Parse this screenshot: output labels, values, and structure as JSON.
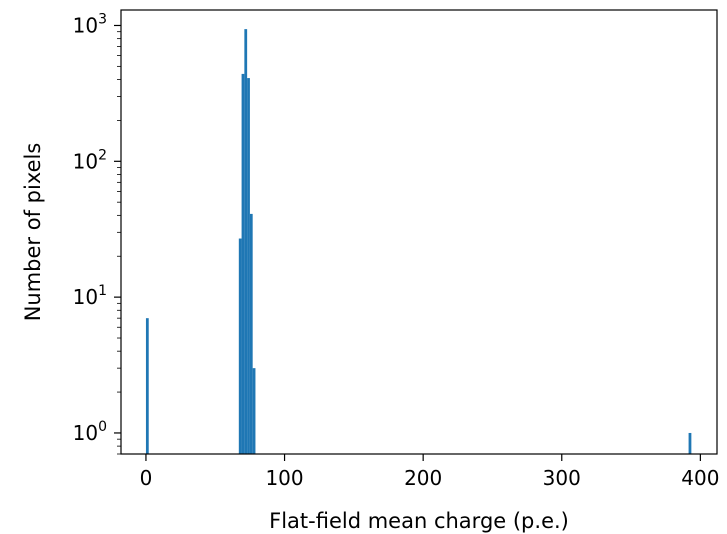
{
  "chart_data": {
    "type": "bar",
    "title": "",
    "xlabel": "Flat-field mean charge (p.e.)",
    "ylabel": "Number of pixels",
    "yscale": "log",
    "xlim": [
      -18,
      412
    ],
    "ylim": [
      0.7,
      1300
    ],
    "grid": false,
    "color": "#1f77b4",
    "xticks": [
      0,
      100,
      200,
      300,
      400
    ],
    "xtick_labels": [
      "0",
      "100",
      "200",
      "300",
      "400"
    ],
    "yticks": [
      1,
      10,
      100,
      1000
    ],
    "ytick_labels": [
      {
        "base": "10",
        "exp": "0"
      },
      {
        "base": "10",
        "exp": "1"
      },
      {
        "base": "10",
        "exp": "2"
      },
      {
        "base": "10",
        "exp": "3"
      }
    ],
    "bins": [
      {
        "x0": 0.0,
        "x1": 2.0,
        "count": 7
      },
      {
        "x0": 67.0,
        "x1": 69.0,
        "count": 27
      },
      {
        "x0": 69.0,
        "x1": 71.0,
        "count": 440
      },
      {
        "x0": 71.0,
        "x1": 73.0,
        "count": 940
      },
      {
        "x0": 73.0,
        "x1": 75.0,
        "count": 410
      },
      {
        "x0": 75.0,
        "x1": 77.0,
        "count": 41
      },
      {
        "x0": 77.0,
        "x1": 79.0,
        "count": 3
      },
      {
        "x0": 391.5,
        "x1": 393.5,
        "count": 1
      }
    ]
  }
}
